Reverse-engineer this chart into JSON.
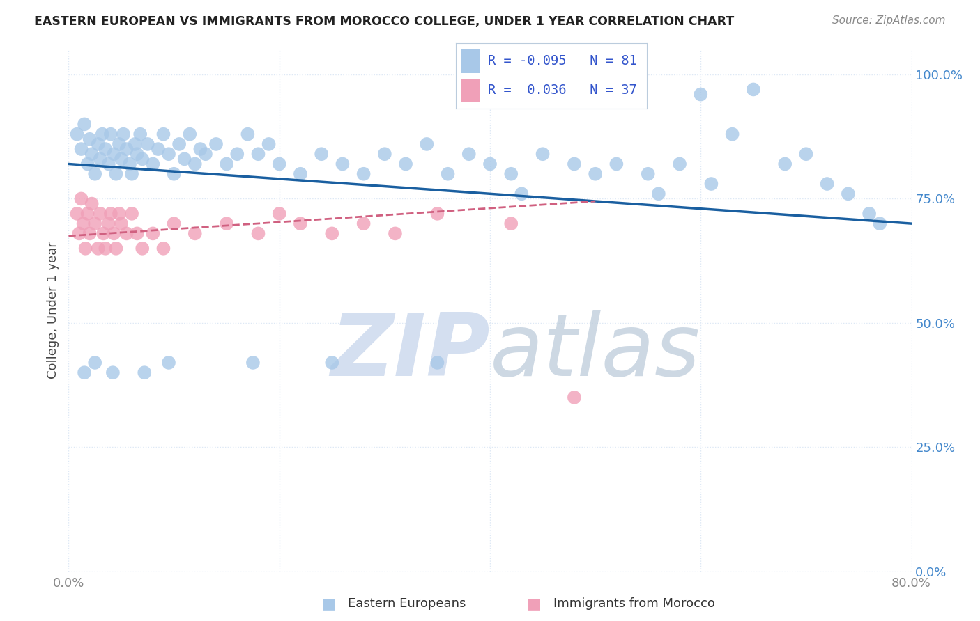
{
  "title": "EASTERN EUROPEAN VS IMMIGRANTS FROM MOROCCO COLLEGE, UNDER 1 YEAR CORRELATION CHART",
  "source": "Source: ZipAtlas.com",
  "ylabel": "College, Under 1 year",
  "xlim": [
    0.0,
    0.8
  ],
  "ylim": [
    0.0,
    1.05
  ],
  "ytick_vals": [
    0.0,
    0.25,
    0.5,
    0.75,
    1.0
  ],
  "ytick_labels": [
    "0.0%",
    "25.0%",
    "50.0%",
    "75.0%",
    "100.0%"
  ],
  "xtick_vals": [
    0.0,
    0.2,
    0.4,
    0.6,
    0.8
  ],
  "xtick_labels": [
    "0.0%",
    "",
    "",
    "",
    "80.0%"
  ],
  "blue_R": -0.095,
  "blue_N": 81,
  "pink_R": 0.036,
  "pink_N": 37,
  "blue_color": "#a8c8e8",
  "pink_color": "#f0a0b8",
  "blue_line_color": "#1a5fa0",
  "pink_line_color": "#d06080",
  "watermark1": "ZIP",
  "watermark2": "atlas",
  "watermark_color": "#d4dff0",
  "background_color": "#ffffff",
  "grid_color": "#dde8f5",
  "legend_R_color": "#3355cc",
  "title_color": "#222222",
  "source_color": "#888888",
  "ylabel_color": "#444444",
  "right_tick_color": "#4488cc",
  "bottom_tick_color": "#888888",
  "blue_x": [
    0.008,
    0.012,
    0.015,
    0.018,
    0.02,
    0.022,
    0.025,
    0.028,
    0.03,
    0.032,
    0.035,
    0.038,
    0.04,
    0.043,
    0.045,
    0.048,
    0.05,
    0.052,
    0.055,
    0.058,
    0.06,
    0.063,
    0.065,
    0.068,
    0.07,
    0.075,
    0.08,
    0.085,
    0.09,
    0.095,
    0.1,
    0.105,
    0.11,
    0.115,
    0.12,
    0.125,
    0.13,
    0.14,
    0.15,
    0.16,
    0.17,
    0.18,
    0.19,
    0.2,
    0.22,
    0.24,
    0.26,
    0.28,
    0.3,
    0.32,
    0.34,
    0.36,
    0.38,
    0.4,
    0.42,
    0.45,
    0.48,
    0.5,
    0.52,
    0.55,
    0.58,
    0.6,
    0.63,
    0.65,
    0.68,
    0.7,
    0.72,
    0.74,
    0.76,
    0.77,
    0.61,
    0.56,
    0.43,
    0.35,
    0.25,
    0.175,
    0.095,
    0.072,
    0.042,
    0.025,
    0.015
  ],
  "blue_y": [
    0.88,
    0.85,
    0.9,
    0.82,
    0.87,
    0.84,
    0.8,
    0.86,
    0.83,
    0.88,
    0.85,
    0.82,
    0.88,
    0.84,
    0.8,
    0.86,
    0.83,
    0.88,
    0.85,
    0.82,
    0.8,
    0.86,
    0.84,
    0.88,
    0.83,
    0.86,
    0.82,
    0.85,
    0.88,
    0.84,
    0.8,
    0.86,
    0.83,
    0.88,
    0.82,
    0.85,
    0.84,
    0.86,
    0.82,
    0.84,
    0.88,
    0.84,
    0.86,
    0.82,
    0.8,
    0.84,
    0.82,
    0.8,
    0.84,
    0.82,
    0.86,
    0.8,
    0.84,
    0.82,
    0.8,
    0.84,
    0.82,
    0.8,
    0.82,
    0.8,
    0.82,
    0.96,
    0.88,
    0.97,
    0.82,
    0.84,
    0.78,
    0.76,
    0.72,
    0.7,
    0.78,
    0.76,
    0.76,
    0.42,
    0.42,
    0.42,
    0.42,
    0.4,
    0.4,
    0.42,
    0.4
  ],
  "pink_x": [
    0.008,
    0.01,
    0.012,
    0.014,
    0.016,
    0.018,
    0.02,
    0.022,
    0.025,
    0.028,
    0.03,
    0.033,
    0.035,
    0.038,
    0.04,
    0.043,
    0.045,
    0.048,
    0.05,
    0.055,
    0.06,
    0.065,
    0.07,
    0.08,
    0.09,
    0.1,
    0.12,
    0.15,
    0.18,
    0.2,
    0.22,
    0.25,
    0.28,
    0.31,
    0.35,
    0.42,
    0.48
  ],
  "pink_y": [
    0.72,
    0.68,
    0.75,
    0.7,
    0.65,
    0.72,
    0.68,
    0.74,
    0.7,
    0.65,
    0.72,
    0.68,
    0.65,
    0.7,
    0.72,
    0.68,
    0.65,
    0.72,
    0.7,
    0.68,
    0.72,
    0.68,
    0.65,
    0.68,
    0.65,
    0.7,
    0.68,
    0.7,
    0.68,
    0.72,
    0.7,
    0.68,
    0.7,
    0.68,
    0.72,
    0.7,
    0.35
  ],
  "blue_line_x0": 0.0,
  "blue_line_y0": 0.82,
  "blue_line_x1": 0.8,
  "blue_line_y1": 0.7,
  "pink_line_x0": 0.0,
  "pink_line_y0": 0.675,
  "pink_line_x1": 0.5,
  "pink_line_y1": 0.745
}
